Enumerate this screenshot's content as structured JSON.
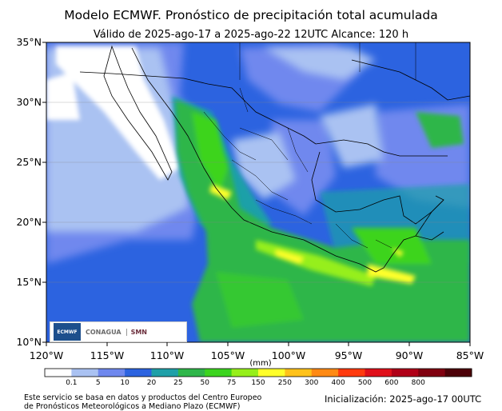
{
  "title": "Modelo ECMWF. Pronóstico de precipitación total acumulada",
  "subtitle": "Válido de 2025-ago-17 a 2025-ago-22 12UTC   Alcance: 120 h",
  "lat_labels": [
    "35°N",
    "30°N",
    "25°N",
    "20°N",
    "15°N",
    "10°N"
  ],
  "lon_labels": [
    "120°W",
    "115°W",
    "110°W",
    "105°W",
    "100°W",
    "95°W",
    "90°W",
    "85°W"
  ],
  "colorbar": {
    "units": "(mm)",
    "labels": [
      "0.1",
      "5",
      "10",
      "20",
      "25",
      "50",
      "75",
      "150",
      "250",
      "300",
      "400",
      "500",
      "600",
      "800"
    ],
    "colors": [
      "#ffffff",
      "#aac2f2",
      "#6f88ee",
      "#2c63e0",
      "#1fa0a8",
      "#2fb64a",
      "#3cd41f",
      "#96ef1a",
      "#ffff2a",
      "#ffc21a",
      "#ff8a14",
      "#ff3a0e",
      "#e0101a",
      "#b00018",
      "#800010",
      "#4c0008"
    ]
  },
  "logos": {
    "ecmwf": "ECMWF",
    "conagua": "CONAGUA",
    "smn": "SMN"
  },
  "credit_line1": "Este servicio se basa en datos y productos del Centro Europeo",
  "credit_line2": "de Pronósticos Meteorológicos a Mediano Plazo (ECMWF)",
  "initialization": "Inicialización: 2025-ago-17 00UTC"
}
